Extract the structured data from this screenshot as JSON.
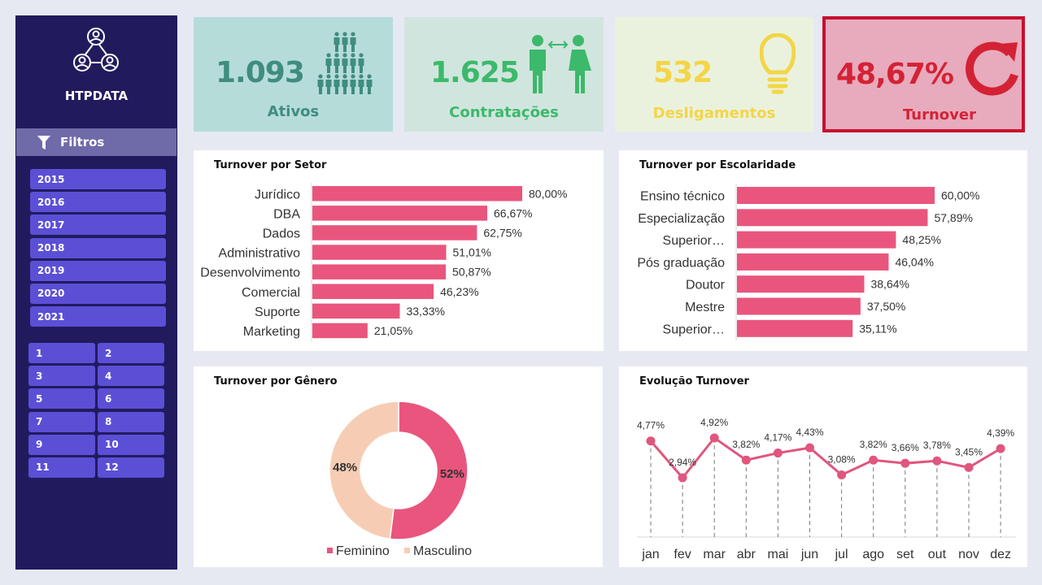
{
  "sidebar": {
    "brand": "HTPDATA",
    "filters_label": "Filtros",
    "years": [
      "2015",
      "2016",
      "2017",
      "2018",
      "2019",
      "2020",
      "2021"
    ],
    "months": [
      "1",
      "2",
      "3",
      "4",
      "5",
      "6",
      "7",
      "8",
      "9",
      "10",
      "11",
      "12"
    ]
  },
  "kpis": [
    {
      "value": "1.093",
      "label": "Ativos",
      "color": "#3f8d7d",
      "bg": "#b6dcda",
      "icon": "people-group-icon"
    },
    {
      "value": "1.625",
      "label": "Contratações",
      "color": "#3cb96a",
      "bg": "#d1e5df",
      "icon": "hiring-icon"
    },
    {
      "value": "532",
      "label": "Desligamentos",
      "color": "#f3d547",
      "bg": "#eaf2de",
      "icon": "lightbulb-icon"
    },
    {
      "value": "48,67%",
      "label": "Turnover",
      "color": "#d42235",
      "bg": "#e8aabd",
      "icon": "refresh-icon"
    }
  ],
  "chart_data": [
    {
      "type": "bar",
      "title": "Turnover por Setor",
      "orientation": "horizontal",
      "categories": [
        "Jurídico",
        "DBA",
        "Dados",
        "Administrativo",
        "Desenvolvimento",
        "Comercial",
        "Suporte",
        "Marketing"
      ],
      "values": [
        80.0,
        66.67,
        62.75,
        51.01,
        50.87,
        46.23,
        33.33,
        21.05
      ],
      "value_labels": [
        "80,00%",
        "66,67%",
        "62,75%",
        "51,01%",
        "50,87%",
        "46,23%",
        "33,33%",
        "21,05%"
      ],
      "color": "#e9557d"
    },
    {
      "type": "bar",
      "title": "Turnover por Escolaridade",
      "orientation": "horizontal",
      "categories": [
        "Ensino técnico",
        "Especialização",
        "Superior…",
        "Pós graduação",
        "Doutor",
        "Mestre",
        "Superior…"
      ],
      "values": [
        60.0,
        57.89,
        48.25,
        46.04,
        38.64,
        37.5,
        35.11
      ],
      "value_labels": [
        "60,00%",
        "57,89%",
        "48,25%",
        "46,04%",
        "38,64%",
        "37,50%",
        "35,11%"
      ],
      "color": "#e9557d"
    },
    {
      "type": "pie",
      "title": "Turnover por Gênero",
      "donut": true,
      "labels": [
        "Feminino",
        "Masculino"
      ],
      "values": [
        52,
        48
      ],
      "value_labels": [
        "52%",
        "48%"
      ],
      "colors": [
        "#e9557d",
        "#f6cdb4"
      ],
      "legend": "bottom"
    },
    {
      "type": "line",
      "title": "Evolução Turnover",
      "categories": [
        "jan",
        "fev",
        "mar",
        "abr",
        "mai",
        "jun",
        "jul",
        "ago",
        "set",
        "out",
        "nov",
        "dez"
      ],
      "values": [
        4.77,
        2.94,
        4.92,
        3.82,
        4.17,
        4.43,
        3.08,
        3.82,
        3.66,
        3.78,
        3.45,
        4.39
      ],
      "value_labels": [
        "4,77%",
        "2,94%",
        "4,92%",
        "3,82%",
        "4,17%",
        "4,43%",
        "3,08%",
        "3,82%",
        "3,66%",
        "3,78%",
        "3,45%",
        "4,39%"
      ],
      "color": "#e0567e",
      "drop_lines": true
    }
  ]
}
